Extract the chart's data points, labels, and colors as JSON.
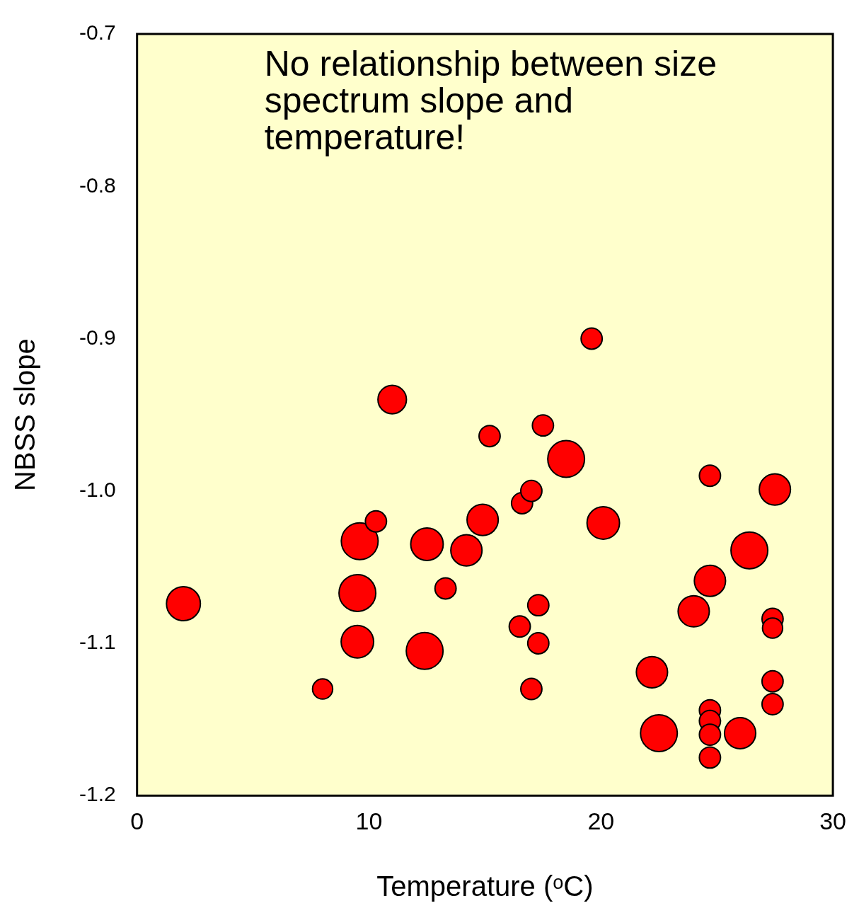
{
  "chart_data": {
    "type": "bubble",
    "xlabel": "Temperature (ᵒC)",
    "ylabel": "NBSS slope",
    "annotations": [
      "No relationship between size spectrum slope and temperature!"
    ],
    "x": [
      2.0,
      8.0,
      9.6,
      10.3,
      9.5,
      9.5,
      11.0,
      12.5,
      12.4,
      13.3,
      14.2,
      14.9,
      15.2,
      16.6,
      17.0,
      16.5,
      17.0,
      17.3,
      17.3,
      17.5,
      18.5,
      19.6,
      20.1,
      22.2,
      22.5,
      24.0,
      24.7,
      24.7,
      24.7,
      24.7,
      24.7,
      24.7,
      26.0,
      26.4,
      27.5,
      27.4,
      27.4,
      27.4,
      27.4
    ],
    "values": [
      -1.074,
      -1.13,
      -1.033,
      -1.02,
      -1.067,
      -1.099,
      -0.94,
      -1.035,
      -1.105,
      -1.064,
      -1.039,
      -1.019,
      -0.964,
      -1.008,
      -1.0,
      -1.089,
      -1.13,
      -1.075,
      -1.1,
      -0.957,
      -0.979,
      -0.9,
      -1.021,
      -1.119,
      -1.159,
      -1.079,
      -1.059,
      -0.99,
      -1.144,
      -1.151,
      -1.16,
      -1.175,
      -1.159,
      -1.039,
      -0.999,
      -1.084,
      -1.09,
      -1.125,
      -1.14
    ],
    "sizes": [
      0.85,
      0.3,
      1,
      0.33,
      1,
      0.78,
      0.6,
      0.78,
      1,
      0.33,
      0.72,
      0.72,
      0.33,
      0.33,
      0.33,
      0.33,
      0.33,
      0.33,
      0.33,
      0.33,
      1,
      0.33,
      0.78,
      0.72,
      1,
      0.72,
      0.72,
      0.33,
      0.33,
      0.33,
      0.33,
      0.33,
      0.72,
      1,
      0.72,
      0.33,
      0.3,
      0.33,
      0.33
    ],
    "color": "#ff0000",
    "xlim": [
      0,
      30
    ],
    "xticks": [
      0,
      10,
      20,
      30
    ],
    "ylim": [
      -1.2,
      -0.7
    ],
    "yticks": [
      -1.2,
      -1.1,
      {
        "value": -1,
        "label": "-1.0"
      },
      -0.9,
      -0.8,
      -0.7
    ],
    "grid": false,
    "legend": false
  }
}
